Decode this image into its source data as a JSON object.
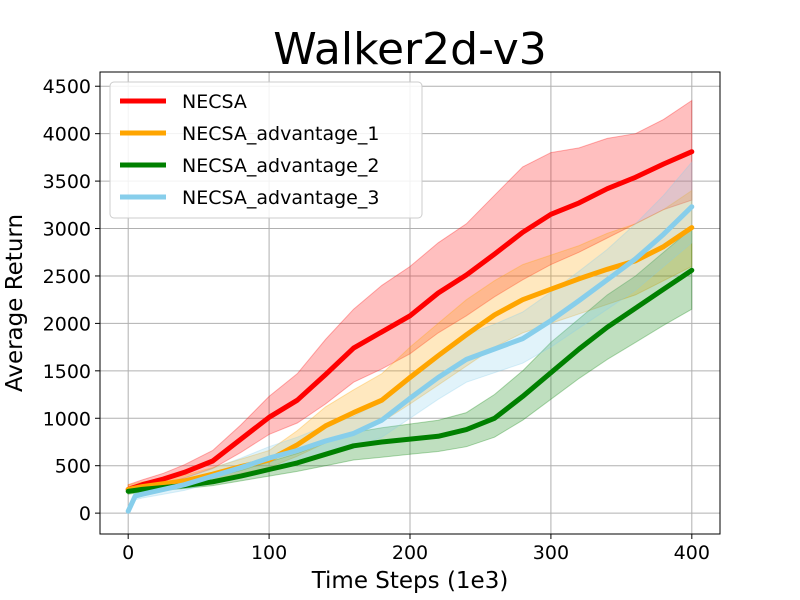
{
  "chart_data": {
    "type": "line",
    "title": "Walker2d-v3",
    "xlabel": "Time Steps (1e3)",
    "ylabel": "Average Return",
    "xlim": [
      -20,
      420
    ],
    "ylim": [
      -220,
      4650
    ],
    "xticks": [
      0,
      100,
      200,
      300,
      400
    ],
    "yticks": [
      0,
      500,
      1000,
      1500,
      2000,
      2500,
      3000,
      3500,
      4000,
      4500
    ],
    "grid": true,
    "legend_position": "top-left",
    "series": [
      {
        "name": "NECSA",
        "color": "#ff0000",
        "x": [
          0,
          10,
          25,
          40,
          60,
          80,
          100,
          120,
          140,
          160,
          180,
          200,
          220,
          240,
          260,
          280,
          300,
          320,
          340,
          360,
          380,
          400
        ],
        "mean": [
          250,
          300,
          360,
          430,
          550,
          780,
          1010,
          1190,
          1460,
          1740,
          1910,
          2080,
          2320,
          2510,
          2730,
          2960,
          3150,
          3270,
          3420,
          3540,
          3680,
          3810
        ],
        "lower": [
          220,
          260,
          310,
          370,
          470,
          640,
          830,
          950,
          1150,
          1380,
          1520,
          1680,
          1900,
          2080,
          2280,
          2460,
          2620,
          2750,
          2900,
          3050,
          3200,
          3300
        ],
        "upper": [
          300,
          350,
          420,
          510,
          660,
          930,
          1230,
          1470,
          1830,
          2150,
          2400,
          2600,
          2850,
          3050,
          3350,
          3650,
          3800,
          3850,
          3950,
          4000,
          4150,
          4350
        ]
      },
      {
        "name": "NECSA_advantage_1",
        "color": "#ffa500",
        "x": [
          0,
          10,
          25,
          40,
          60,
          80,
          100,
          120,
          140,
          160,
          180,
          200,
          220,
          240,
          260,
          280,
          300,
          320,
          340,
          360,
          380,
          400
        ],
        "mean": [
          250,
          280,
          310,
          340,
          410,
          490,
          560,
          720,
          920,
          1060,
          1190,
          1430,
          1660,
          1880,
          2090,
          2250,
          2360,
          2470,
          2570,
          2660,
          2810,
          3010
        ],
        "lower": [
          220,
          245,
          270,
          295,
          350,
          420,
          480,
          600,
          740,
          850,
          960,
          1150,
          1350,
          1550,
          1750,
          1900,
          2000,
          2100,
          2200,
          2300,
          2450,
          2600
        ],
        "upper": [
          300,
          330,
          360,
          400,
          480,
          570,
          660,
          870,
          1120,
          1300,
          1470,
          1750,
          2000,
          2250,
          2450,
          2620,
          2720,
          2820,
          2950,
          3050,
          3200,
          3400
        ]
      },
      {
        "name": "NECSA_advantage_2",
        "color": "#008000",
        "x": [
          0,
          10,
          25,
          40,
          60,
          80,
          100,
          120,
          140,
          160,
          180,
          200,
          220,
          240,
          260,
          280,
          300,
          320,
          340,
          360,
          380,
          400
        ],
        "mean": [
          230,
          250,
          270,
          290,
          330,
          390,
          460,
          530,
          620,
          710,
          750,
          780,
          810,
          880,
          1000,
          1230,
          1480,
          1730,
          1960,
          2160,
          2360,
          2560
        ],
        "lower": [
          200,
          220,
          240,
          260,
          290,
          340,
          390,
          440,
          500,
          560,
          590,
          620,
          650,
          700,
          800,
          980,
          1200,
          1420,
          1620,
          1800,
          1980,
          2150
        ],
        "upper": [
          270,
          290,
          310,
          330,
          380,
          450,
          540,
          630,
          740,
          850,
          900,
          940,
          980,
          1060,
          1250,
          1500,
          1800,
          2050,
          2300,
          2500,
          2750,
          3000
        ]
      },
      {
        "name": "NECSA_advantage_3",
        "color": "#87ceeb",
        "x": [
          0,
          5,
          10,
          25,
          40,
          60,
          80,
          100,
          120,
          140,
          160,
          180,
          200,
          220,
          240,
          260,
          280,
          300,
          320,
          340,
          360,
          380,
          400
        ],
        "mean": [
          20,
          180,
          200,
          250,
          300,
          390,
          480,
          580,
          660,
          760,
          840,
          980,
          1210,
          1430,
          1620,
          1730,
          1840,
          2030,
          2240,
          2460,
          2680,
          2940,
          3230
        ],
        "lower": [
          0,
          140,
          160,
          200,
          240,
          320,
          390,
          470,
          530,
          610,
          680,
          800,
          1000,
          1200,
          1380,
          1480,
          1580,
          1750,
          1950,
          2150,
          2350,
          2600,
          2850
        ],
        "upper": [
          60,
          230,
          250,
          310,
          370,
          470,
          580,
          700,
          800,
          920,
          1020,
          1180,
          1450,
          1680,
          1880,
          1990,
          2120,
          2330,
          2550,
          2780,
          3050,
          3350,
          3700
        ]
      }
    ]
  }
}
